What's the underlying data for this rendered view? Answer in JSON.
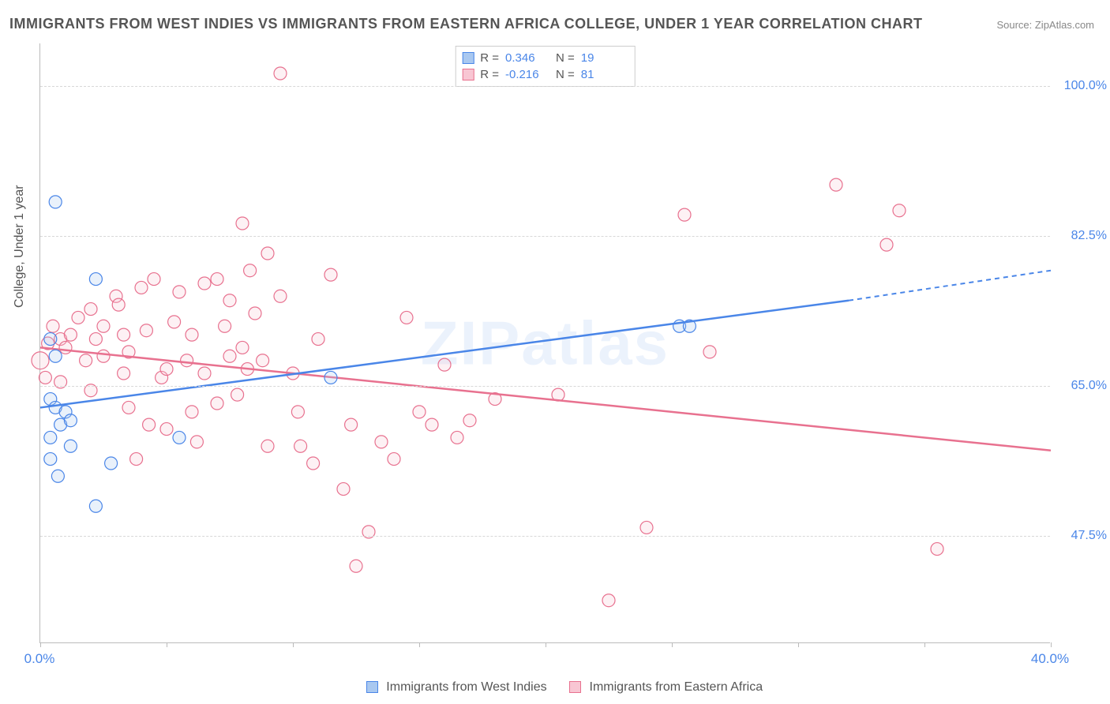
{
  "title": "IMMIGRANTS FROM WEST INDIES VS IMMIGRANTS FROM EASTERN AFRICA COLLEGE, UNDER 1 YEAR CORRELATION CHART",
  "source": "Source: ZipAtlas.com",
  "watermark": "ZIPatlas",
  "ylabel": "College, Under 1 year",
  "chart": {
    "type": "scatter",
    "xlim": [
      0,
      40
    ],
    "ylim": [
      35,
      105
    ],
    "yticks": [
      47.5,
      65.0,
      82.5,
      100.0
    ],
    "ytick_labels": [
      "47.5%",
      "65.0%",
      "82.5%",
      "100.0%"
    ],
    "xticks": [
      0,
      5,
      10,
      15,
      20,
      25,
      30,
      35,
      40
    ],
    "xtick_labels": {
      "0": "0.0%",
      "40": "40.0%"
    },
    "background_color": "#ffffff",
    "grid_color": "#d8d8d8",
    "series": {
      "blue": {
        "label": "Immigrants from West Indies",
        "fill": "#a9c8f0",
        "stroke": "#4a86e8",
        "R": "0.346",
        "N": "19",
        "regression": {
          "x1": 0,
          "y1": 62.5,
          "x2": 32,
          "y2": 75.0,
          "dash_extend_to": 40,
          "dash_y": 78.5
        },
        "points": [
          [
            0.6,
            86.5
          ],
          [
            2.2,
            77.5
          ],
          [
            0.6,
            68.5
          ],
          [
            0.4,
            63.5
          ],
          [
            0.6,
            62.5
          ],
          [
            1.0,
            62.0
          ],
          [
            0.8,
            60.5
          ],
          [
            1.2,
            61.0
          ],
          [
            0.4,
            59.0
          ],
          [
            1.2,
            58.0
          ],
          [
            0.7,
            54.5
          ],
          [
            2.8,
            56.0
          ],
          [
            0.4,
            56.5
          ],
          [
            5.5,
            59.0
          ],
          [
            2.2,
            51.0
          ],
          [
            11.5,
            66.0
          ],
          [
            25.3,
            72.0
          ],
          [
            25.7,
            72.0
          ],
          [
            0.4,
            70.5
          ]
        ]
      },
      "pink": {
        "label": "Immigrants from Eastern Africa",
        "fill": "#f8c6d3",
        "stroke": "#e8718f",
        "R": "-0.216",
        "N": "81",
        "regression": {
          "x1": 0,
          "y1": 69.5,
          "x2": 40,
          "y2": 57.5
        },
        "points": [
          [
            0.0,
            68.0,
            11
          ],
          [
            0.3,
            70.0
          ],
          [
            0.5,
            72.0
          ],
          [
            0.8,
            70.5
          ],
          [
            1.0,
            69.5
          ],
          [
            1.5,
            73.0
          ],
          [
            1.2,
            71.0
          ],
          [
            0.2,
            66.0
          ],
          [
            0.8,
            65.5
          ],
          [
            1.8,
            68.0
          ],
          [
            2.0,
            74.0
          ],
          [
            2.2,
            70.5
          ],
          [
            2.5,
            68.5
          ],
          [
            2.5,
            72.0
          ],
          [
            3.0,
            75.5
          ],
          [
            3.1,
            74.5
          ],
          [
            3.3,
            71.0
          ],
          [
            3.5,
            69.0
          ],
          [
            3.3,
            66.5
          ],
          [
            3.5,
            62.5
          ],
          [
            4.0,
            76.5
          ],
          [
            4.5,
            77.5
          ],
          [
            4.2,
            71.5
          ],
          [
            4.8,
            66.0
          ],
          [
            4.3,
            60.5
          ],
          [
            5.0,
            67.0
          ],
          [
            5.5,
            76.0
          ],
          [
            5.3,
            72.5
          ],
          [
            5.8,
            68.0
          ],
          [
            5.0,
            60.0
          ],
          [
            6.0,
            71.0
          ],
          [
            6.0,
            62.0
          ],
          [
            6.2,
            58.5
          ],
          [
            6.5,
            66.5
          ],
          [
            7.0,
            77.5
          ],
          [
            7.3,
            72.0
          ],
          [
            7.5,
            68.5
          ],
          [
            7.5,
            75.0
          ],
          [
            7.8,
            64.0
          ],
          [
            8.0,
            84.0
          ],
          [
            8.0,
            69.5
          ],
          [
            8.2,
            67.0
          ],
          [
            8.3,
            78.5
          ],
          [
            8.5,
            73.5
          ],
          [
            8.8,
            68.0
          ],
          [
            9.0,
            58.0
          ],
          [
            9.0,
            80.5
          ],
          [
            9.5,
            101.5
          ],
          [
            9.5,
            75.5
          ],
          [
            10.0,
            66.5
          ],
          [
            10.2,
            62.0
          ],
          [
            10.3,
            58.0
          ],
          [
            10.8,
            56.0
          ],
          [
            11.0,
            70.5
          ],
          [
            11.5,
            78.0
          ],
          [
            12.0,
            53.0
          ],
          [
            12.3,
            60.5
          ],
          [
            12.5,
            44.0
          ],
          [
            13.0,
            48.0
          ],
          [
            13.5,
            58.5
          ],
          [
            14.0,
            56.5
          ],
          [
            14.5,
            73.0
          ],
          [
            15.0,
            62.0
          ],
          [
            15.5,
            60.5
          ],
          [
            16.0,
            67.5
          ],
          [
            16.5,
            59.0
          ],
          [
            17.0,
            61.0
          ],
          [
            18.0,
            63.5
          ],
          [
            20.5,
            64.0
          ],
          [
            22.5,
            40.0
          ],
          [
            24.0,
            48.5
          ],
          [
            25.5,
            85.0
          ],
          [
            26.5,
            69.0
          ],
          [
            31.5,
            88.5
          ],
          [
            33.5,
            81.5
          ],
          [
            34.0,
            85.5
          ],
          [
            35.5,
            46.0
          ],
          [
            7.0,
            63.0
          ],
          [
            6.5,
            77.0
          ],
          [
            3.8,
            56.5
          ],
          [
            2.0,
            64.5
          ]
        ]
      }
    }
  },
  "colors": {
    "axis_text": "#4a86e8",
    "title_text": "#555555",
    "border": "#bbbbbb"
  },
  "fonts": {
    "title_size": 18,
    "axis_size": 16,
    "legend_size": 16
  }
}
